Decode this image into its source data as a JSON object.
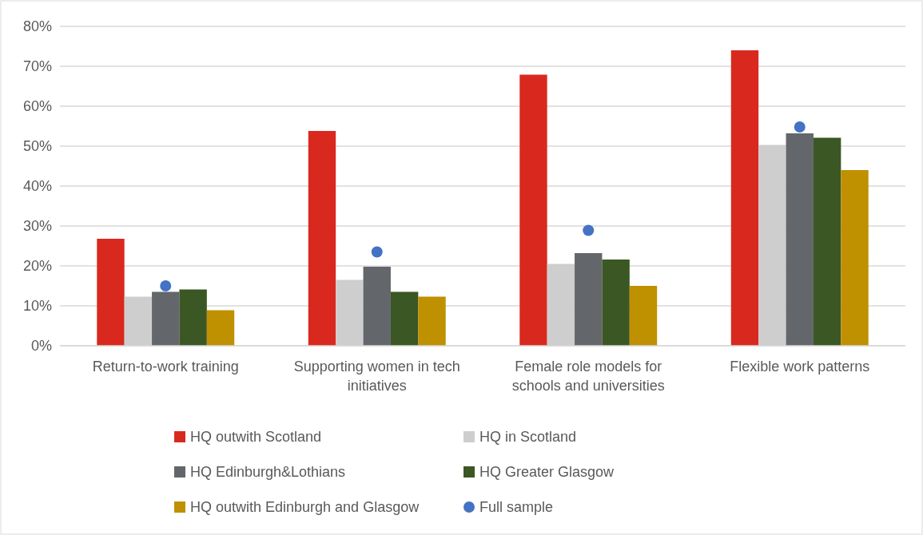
{
  "chart_data": {
    "type": "bar",
    "categories": [
      "Return-to-work training",
      "Supporting women in tech initiatives",
      "Female role models for schools and universities",
      "Flexible work patterns"
    ],
    "series": [
      {
        "name": "HQ outwith Scotland",
        "color": "#d9291f",
        "values": [
          26.8,
          53.8,
          67.9,
          74.0
        ]
      },
      {
        "name": "HQ in Scotland",
        "color": "#cfcecf",
        "values": [
          12.3,
          16.5,
          20.5,
          50.3
        ]
      },
      {
        "name": "HQ Edinburgh&Lothians",
        "color": "#63666a",
        "values": [
          13.5,
          19.8,
          23.2,
          53.2
        ]
      },
      {
        "name": "HQ Greater Glasgow",
        "color": "#3b5724",
        "values": [
          14.1,
          13.5,
          21.6,
          52.1
        ]
      },
      {
        "name": "HQ outwith Edinburgh and Glasgow",
        "color": "#bf9000",
        "values": [
          8.9,
          12.3,
          15.0,
          44.0
        ]
      },
      {
        "name": "Full sample",
        "type": "scatter",
        "color": "#4472c4",
        "values": [
          15.0,
          23.5,
          28.9,
          54.8
        ]
      }
    ],
    "ylim": [
      0,
      80
    ],
    "yticks": [
      {
        "value": 0,
        "label": "0%"
      },
      {
        "value": 10,
        "label": "10%"
      },
      {
        "value": 20,
        "label": "20%"
      },
      {
        "value": 30,
        "label": "30%"
      },
      {
        "value": 40,
        "label": "40%"
      },
      {
        "value": 50,
        "label": "50%"
      },
      {
        "value": 60,
        "label": "60%"
      },
      {
        "value": 70,
        "label": "70%"
      },
      {
        "value": 80,
        "label": "80%"
      }
    ],
    "grid": "y",
    "legend": "bottom",
    "marker": "circle"
  }
}
